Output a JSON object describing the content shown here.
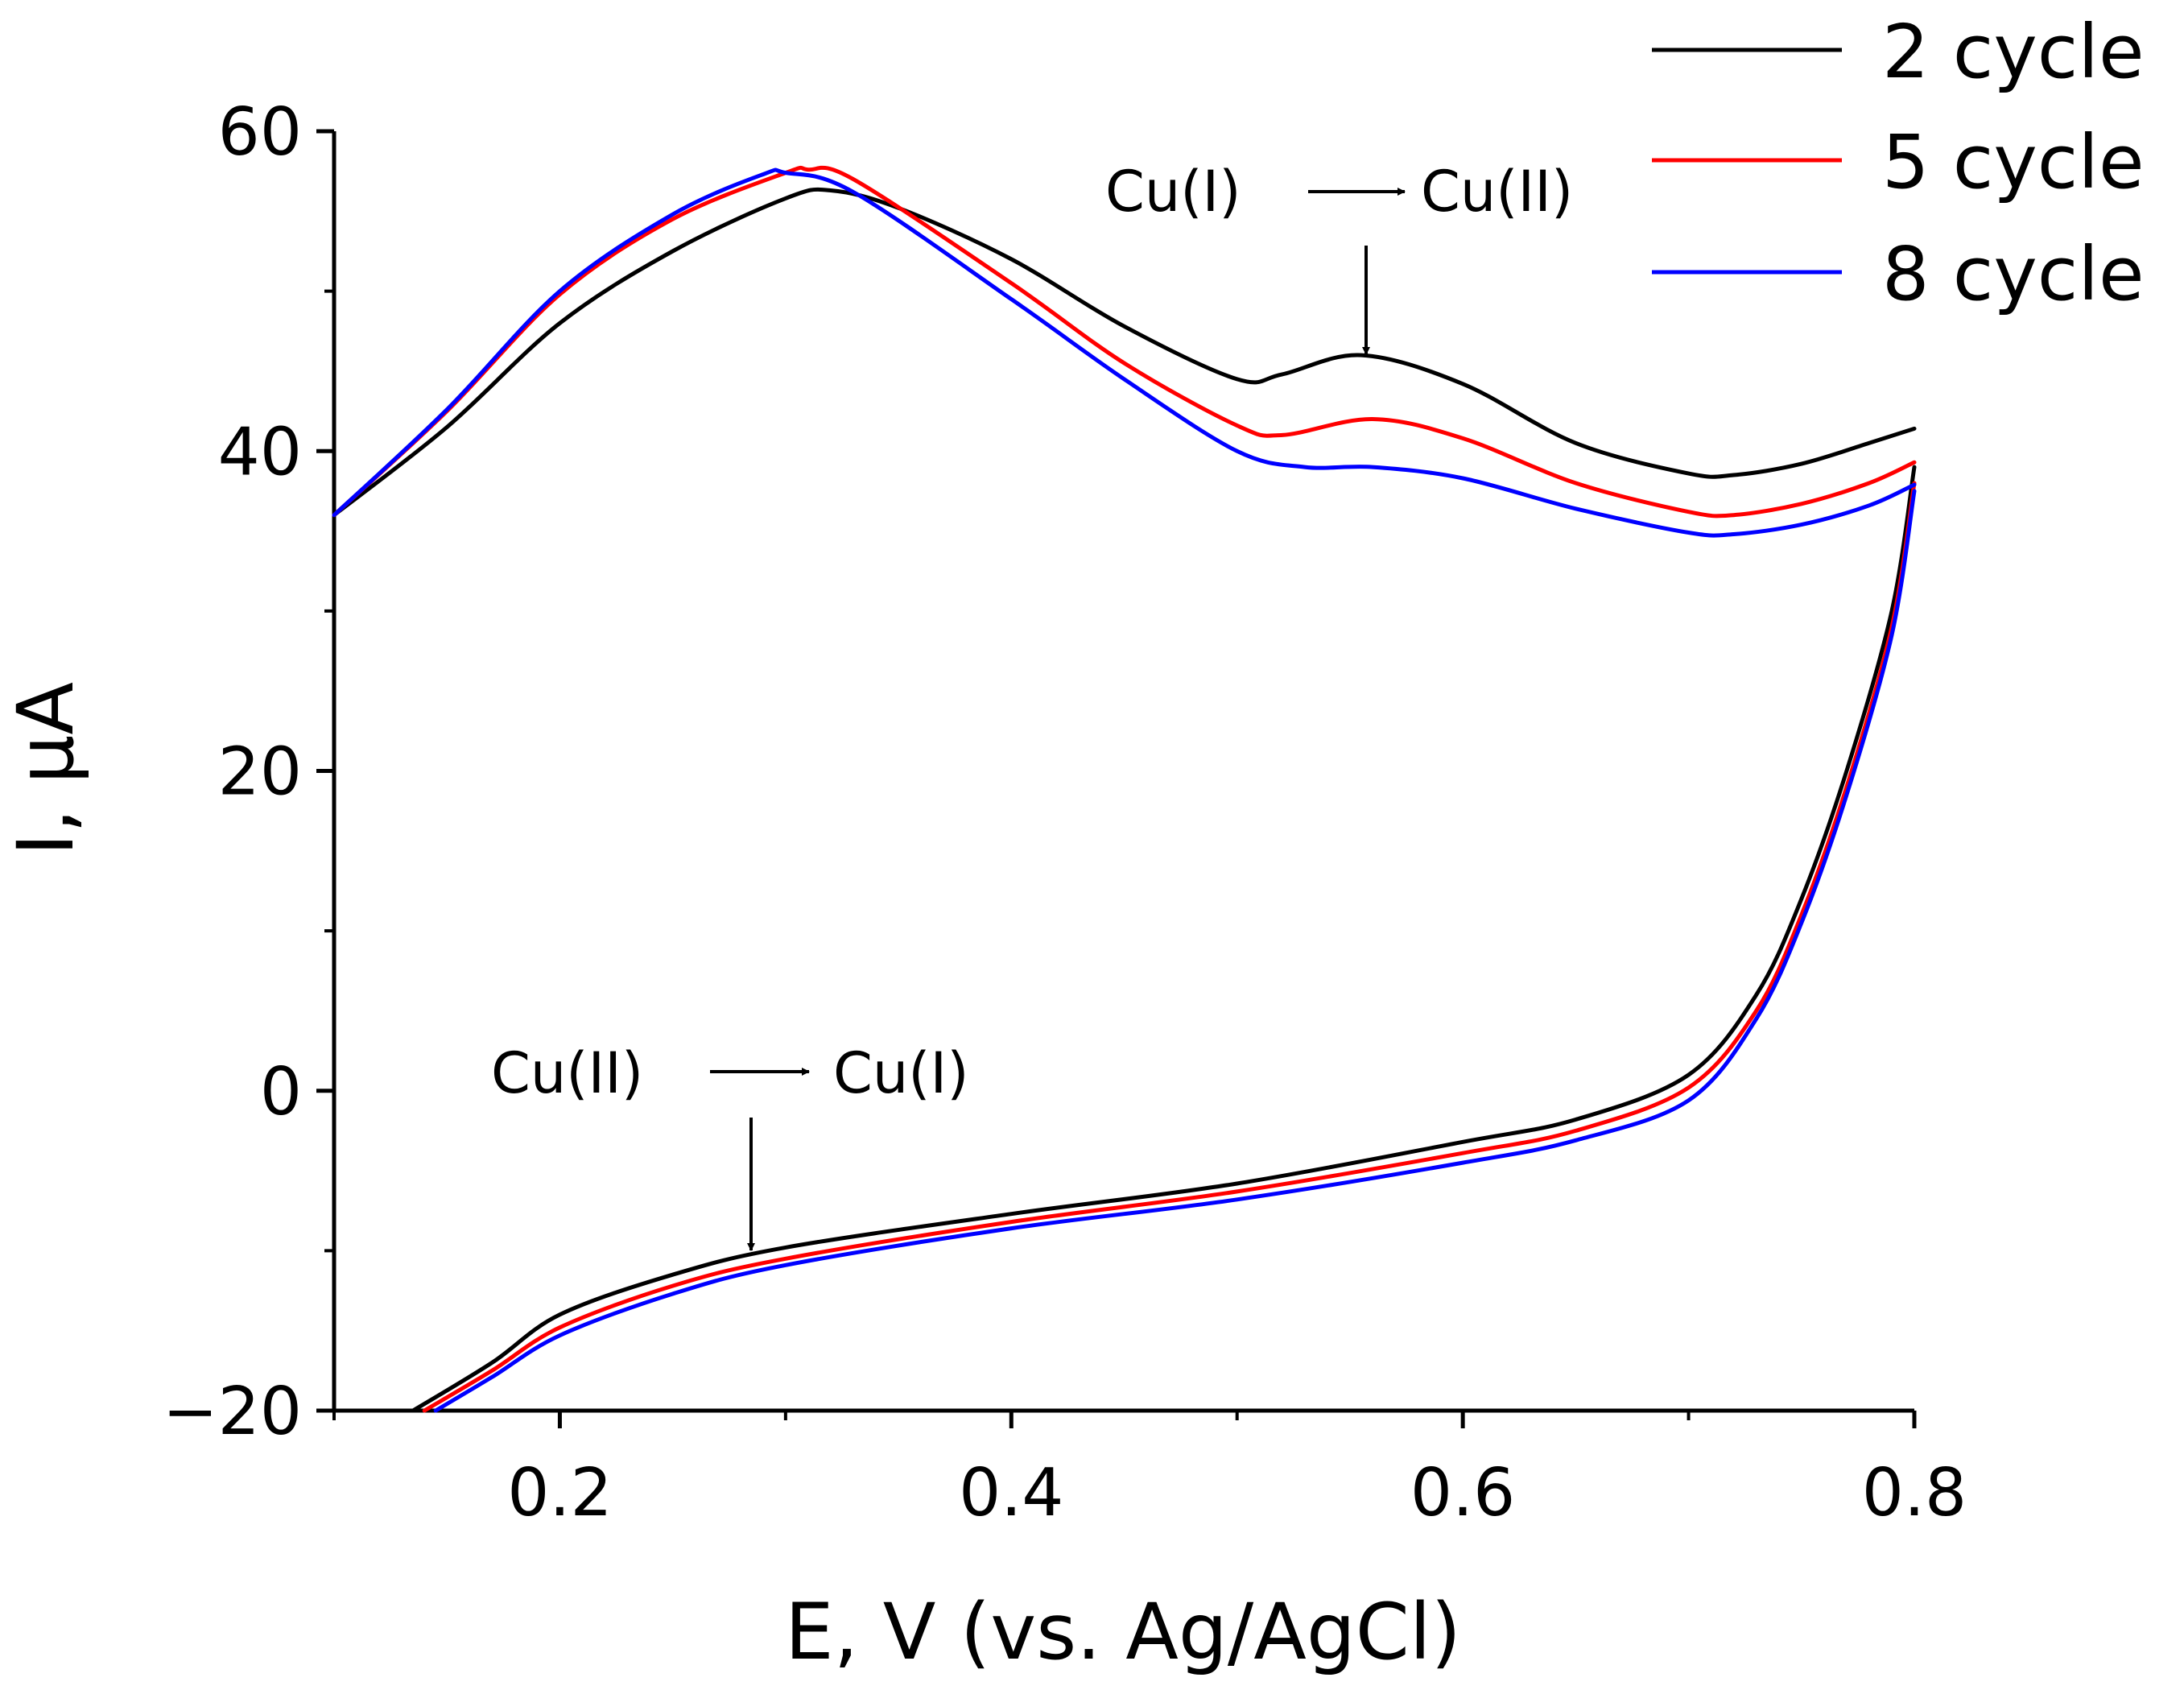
{
  "chart_data": {
    "type": "line",
    "xlabel": "E, V (vs. Ag/AgCl)",
    "ylabel": "I, μA",
    "xlim": [
      0.1,
      0.8
    ],
    "ylim": [
      -20,
      60
    ],
    "x_ticks": [
      0.2,
      0.4,
      0.6,
      0.8
    ],
    "x_tick_labels": [
      "0.2",
      "0.4",
      "0.6",
      "0.8"
    ],
    "y_ticks": [
      -20,
      0,
      20,
      40,
      60
    ],
    "y_tick_labels": [
      "−20",
      "0",
      "20",
      "40",
      "60"
    ],
    "legend": {
      "position": "top-right",
      "entries": [
        "2 cycle",
        "5 cycle",
        "8 cycle"
      ]
    },
    "series": [
      {
        "name": "2 cycle",
        "color": "#000000",
        "anodic": [
          [
            0.1,
            36
          ],
          [
            0.15,
            41.5
          ],
          [
            0.2,
            48
          ],
          [
            0.25,
            52.5
          ],
          [
            0.3,
            55.8
          ],
          [
            0.32,
            56.3
          ],
          [
            0.35,
            55.2
          ],
          [
            0.4,
            52
          ],
          [
            0.45,
            47.8
          ],
          [
            0.5,
            44.5
          ],
          [
            0.52,
            44.8
          ],
          [
            0.555,
            46
          ],
          [
            0.6,
            44.2
          ],
          [
            0.65,
            40.5
          ],
          [
            0.7,
            38.6
          ],
          [
            0.72,
            38.5
          ],
          [
            0.75,
            39.2
          ],
          [
            0.78,
            40.5
          ],
          [
            0.8,
            41.4
          ]
        ],
        "cathodic": [
          [
            0.8,
            39
          ],
          [
            0.79,
            30
          ],
          [
            0.77,
            20
          ],
          [
            0.75,
            12
          ],
          [
            0.73,
            6
          ],
          [
            0.7,
            1
          ],
          [
            0.65,
            -1.8
          ],
          [
            0.6,
            -3.2
          ],
          [
            0.5,
            -5.8
          ],
          [
            0.4,
            -7.7
          ],
          [
            0.3,
            -9.8
          ],
          [
            0.25,
            -11.5
          ],
          [
            0.2,
            -14
          ],
          [
            0.17,
            -17
          ],
          [
            0.135,
            -20
          ]
        ]
      },
      {
        "name": "5 cycle",
        "color": "#ff0000",
        "anodic": [
          [
            0.1,
            36
          ],
          [
            0.15,
            42.5
          ],
          [
            0.2,
            49.8
          ],
          [
            0.25,
            54.5
          ],
          [
            0.3,
            57.4
          ],
          [
            0.31,
            57.6
          ],
          [
            0.33,
            57
          ],
          [
            0.4,
            50.5
          ],
          [
            0.45,
            45.5
          ],
          [
            0.5,
            41.6
          ],
          [
            0.52,
            41
          ],
          [
            0.56,
            42
          ],
          [
            0.6,
            40.8
          ],
          [
            0.65,
            38
          ],
          [
            0.7,
            36.2
          ],
          [
            0.72,
            36
          ],
          [
            0.75,
            36.7
          ],
          [
            0.78,
            38
          ],
          [
            0.8,
            39.3
          ]
        ],
        "cathodic": [
          [
            0.8,
            38
          ],
          [
            0.79,
            29
          ],
          [
            0.77,
            19
          ],
          [
            0.75,
            11
          ],
          [
            0.73,
            5
          ],
          [
            0.7,
            0.2
          ],
          [
            0.65,
            -2.5
          ],
          [
            0.6,
            -3.9
          ],
          [
            0.5,
            -6.3
          ],
          [
            0.4,
            -8.2
          ],
          [
            0.3,
            -10.5
          ],
          [
            0.25,
            -12.2
          ],
          [
            0.2,
            -14.8
          ],
          [
            0.17,
            -17.5
          ],
          [
            0.14,
            -20
          ]
        ]
      },
      {
        "name": "8 cycle",
        "color": "#0000ff",
        "anodic": [
          [
            0.1,
            36
          ],
          [
            0.15,
            42.6
          ],
          [
            0.2,
            50
          ],
          [
            0.25,
            54.8
          ],
          [
            0.29,
            57.3
          ],
          [
            0.3,
            57.4
          ],
          [
            0.33,
            56.2
          ],
          [
            0.4,
            49.5
          ],
          [
            0.45,
            44.5
          ],
          [
            0.5,
            40
          ],
          [
            0.53,
            39
          ],
          [
            0.56,
            39
          ],
          [
            0.6,
            38.3
          ],
          [
            0.65,
            36.4
          ],
          [
            0.7,
            34.9
          ],
          [
            0.72,
            34.8
          ],
          [
            0.75,
            35.4
          ],
          [
            0.78,
            36.6
          ],
          [
            0.8,
            37.9
          ]
        ],
        "cathodic": [
          [
            0.8,
            37.5
          ],
          [
            0.79,
            28.5
          ],
          [
            0.77,
            18.5
          ],
          [
            0.75,
            10.5
          ],
          [
            0.73,
            4.5
          ],
          [
            0.7,
            -0.6
          ],
          [
            0.65,
            -3.1
          ],
          [
            0.6,
            -4.5
          ],
          [
            0.5,
            -6.8
          ],
          [
            0.4,
            -8.6
          ],
          [
            0.3,
            -10.9
          ],
          [
            0.25,
            -12.7
          ],
          [
            0.2,
            -15.3
          ],
          [
            0.17,
            -17.9
          ],
          [
            0.145,
            -20
          ]
        ]
      }
    ],
    "annotations": [
      {
        "from": "Cu(I)",
        "to": "Cu(II)",
        "at": [
          0.555,
          46
        ]
      },
      {
        "from": "Cu(II)",
        "to": "Cu(I)",
        "at": [
          0.285,
          -10.3
        ]
      }
    ]
  }
}
